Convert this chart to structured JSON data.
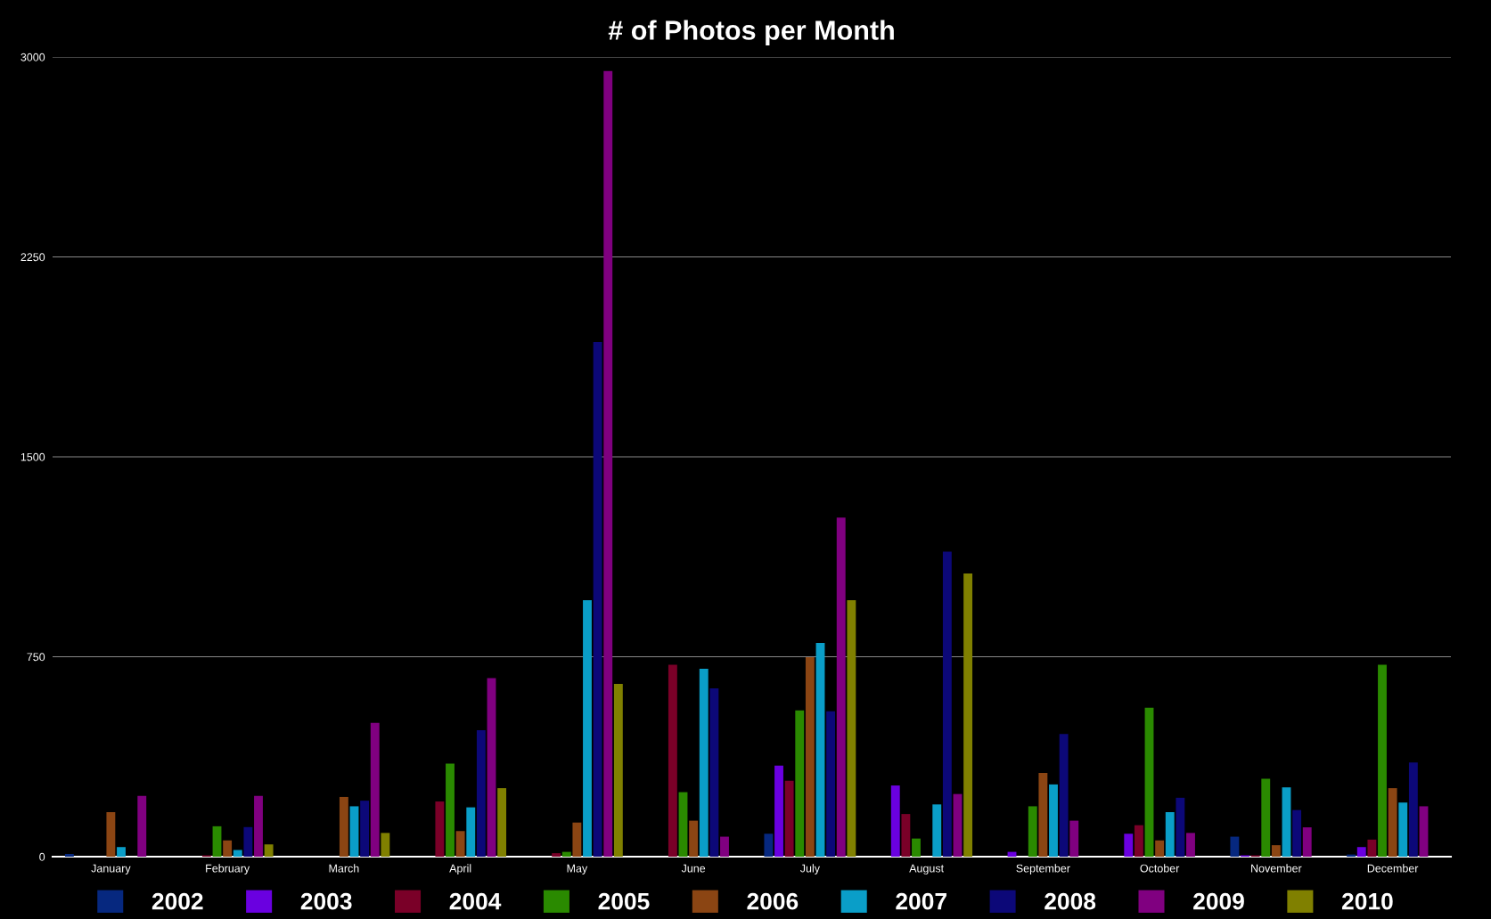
{
  "chart_data": {
    "type": "bar",
    "title": "# of Photos per Month",
    "categories": [
      "January",
      "February",
      "March",
      "April",
      "May",
      "June",
      "July",
      "August",
      "September",
      "October",
      "November",
      "December"
    ],
    "series": [
      {
        "name": "2002",
        "color": "#06287f",
        "values": [
          10,
          0,
          0,
          0,
          0,
          0,
          86,
          0,
          0,
          0,
          75,
          8
        ]
      },
      {
        "name": "2003",
        "color": "#6a00e0",
        "values": [
          0,
          0,
          0,
          0,
          0,
          0,
          342,
          267,
          18,
          86,
          5,
          36
        ]
      },
      {
        "name": "2004",
        "color": "#7a0028",
        "values": [
          0,
          5,
          0,
          207,
          13,
          720,
          285,
          160,
          0,
          118,
          5,
          64
        ]
      },
      {
        "name": "2005",
        "color": "#2a8a00",
        "values": [
          0,
          114,
          0,
          349,
          18,
          242,
          549,
          68,
          189,
          559,
          292,
          720
        ]
      },
      {
        "name": "2006",
        "color": "#8b4513",
        "values": [
          167,
          61,
          224,
          96,
          128,
          135,
          748,
          0,
          314,
          61,
          43,
          257
        ]
      },
      {
        "name": "2007",
        "color": "#0a9ec8",
        "values": [
          36,
          25,
          189,
          185,
          962,
          705,
          802,
          196,
          271,
          167,
          260,
          203
        ]
      },
      {
        "name": "2008",
        "color": "#0c0878",
        "values": [
          0,
          111,
          210,
          474,
          1931,
          631,
          545,
          1144,
          460,
          221,
          175,
          353
        ]
      },
      {
        "name": "2009",
        "color": "#800080",
        "values": [
          228,
          228,
          502,
          670,
          2947,
          75,
          1272,
          235,
          135,
          89,
          110,
          189
        ]
      },
      {
        "name": "2010",
        "color": "#808000",
        "values": [
          0,
          46,
          89,
          257,
          648,
          0,
          962,
          1062,
          0,
          0,
          0,
          0
        ]
      }
    ],
    "ylim": [
      0,
      3000
    ],
    "yticks": [
      0,
      750,
      1500,
      2250,
      3000
    ],
    "grid": "y",
    "legend": "bottom"
  }
}
